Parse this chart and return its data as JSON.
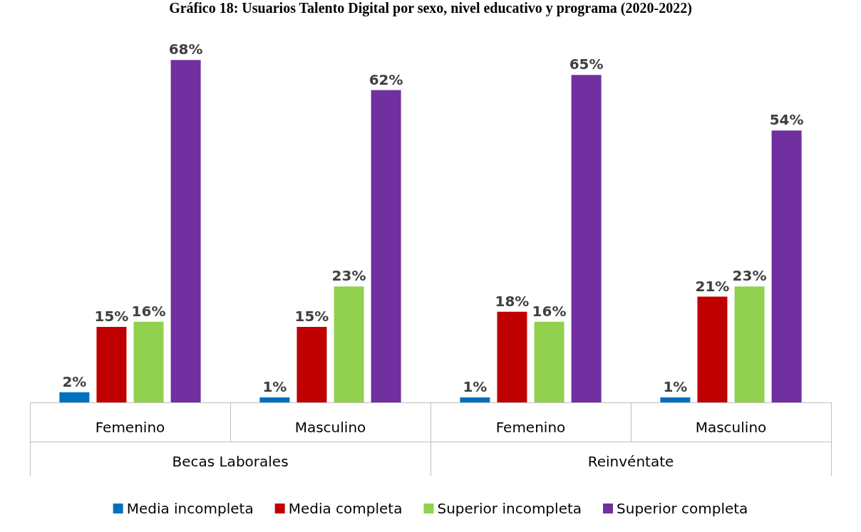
{
  "chart_data": {
    "type": "bar",
    "title": "Gráfico 18: Usuarios Talento Digital por sexo, nivel educativo y programa (2020-2022)",
    "categories": [
      "Femenino",
      "Masculino",
      "Femenino",
      "Masculino"
    ],
    "annotations": [
      "Becas Laborales",
      "Reinvéntate"
    ],
    "series": [
      {
        "name": "Media incompleta",
        "color": "#0070c0",
        "values": [
          2,
          1,
          1,
          1
        ],
        "value_labels": [
          "2%",
          "1%",
          "1%",
          "1%"
        ]
      },
      {
        "name": "Media completa",
        "color": "#c00000",
        "values": [
          15,
          15,
          18,
          21
        ],
        "value_labels": [
          "15%",
          "15%",
          "18%",
          "21%"
        ]
      },
      {
        "name": "Superior incompleta",
        "color": "#92d050",
        "values": [
          16,
          23,
          16,
          23
        ],
        "value_labels": [
          "16%",
          "23%",
          "16%",
          "23%"
        ]
      },
      {
        "name": "Superior completa",
        "color": "#7030a0",
        "values": [
          68,
          62,
          65,
          54
        ],
        "value_labels": [
          "68%",
          "62%",
          "65%",
          "54%"
        ]
      }
    ],
    "legend": "bottom"
  }
}
